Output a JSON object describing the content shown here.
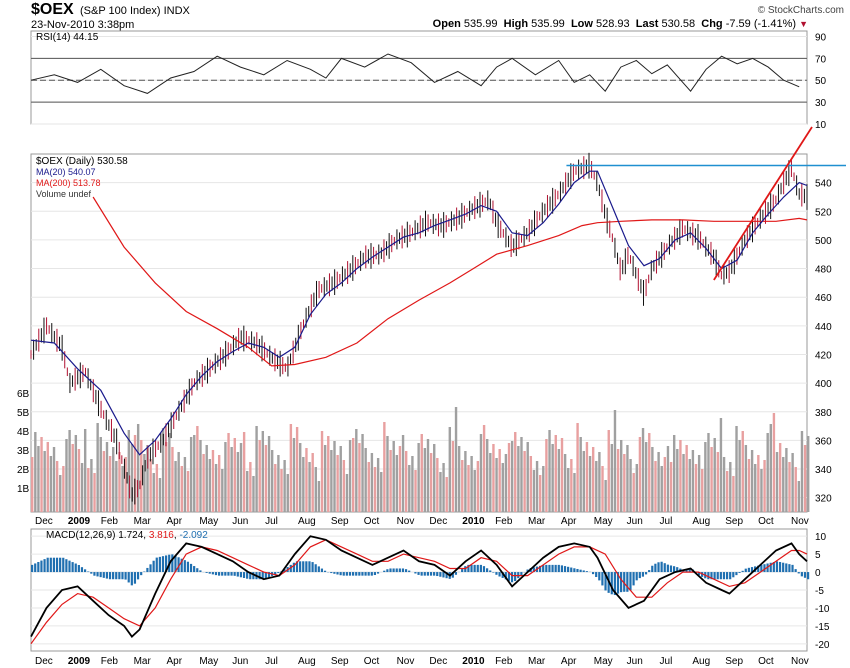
{
  "header": {
    "symbol": "$OEX",
    "description": "(S&P 100 Index) INDX",
    "datetime": "23-Nov-2010 3:38pm",
    "credit": "© StockCharts.com",
    "open_label": "Open",
    "open": "535.99",
    "high_label": "High",
    "high": "535.99",
    "low_label": "Low",
    "low": "528.93",
    "last_label": "Last",
    "last": "530.58",
    "chg_label": "Chg",
    "chg": "-7.59 (-1.41%)",
    "chg_marker": "▼"
  },
  "colors": {
    "price_bar": "#111111",
    "down_bar": "#b01030",
    "ma20": "#1a1a8c",
    "ma200": "#e01818",
    "volume_up": "#a0a0a0",
    "volume_down": "#e8a0a0",
    "trendline": "#e01818",
    "resistance": "#1f8fd0",
    "macd_line": "#000000",
    "signal_line": "#e01818",
    "histogram": "#1f6fb0",
    "grid": "#e6e6e6"
  },
  "chart_data": [
    {
      "type": "line",
      "name": "rsi",
      "title": "RSI(14) 44.15",
      "yticks": [
        90,
        70,
        50,
        30,
        10
      ],
      "ylim": [
        10,
        95
      ],
      "reference_lines": [
        70,
        50,
        30
      ],
      "points": [
        [
          0,
          50
        ],
        [
          3,
          55
        ],
        [
          6,
          48
        ],
        [
          9,
          60
        ],
        [
          12,
          45
        ],
        [
          15,
          38
        ],
        [
          18,
          52
        ],
        [
          21,
          58
        ],
        [
          24,
          72
        ],
        [
          27,
          62
        ],
        [
          30,
          55
        ],
        [
          33,
          68
        ],
        [
          36,
          60
        ],
        [
          38,
          52
        ],
        [
          40,
          70
        ],
        [
          43,
          62
        ],
        [
          46,
          74
        ],
        [
          49,
          66
        ],
        [
          52,
          48
        ],
        [
          55,
          58
        ],
        [
          58,
          45
        ],
        [
          60,
          62
        ],
        [
          62,
          70
        ],
        [
          65,
          55
        ],
        [
          68,
          68
        ],
        [
          70,
          48
        ],
        [
          72,
          55
        ],
        [
          74,
          40
        ],
        [
          76,
          62
        ],
        [
          78,
          68
        ],
        [
          80,
          56
        ],
        [
          82,
          64
        ],
        [
          84,
          48
        ],
        [
          85,
          40
        ],
        [
          87,
          60
        ],
        [
          89,
          72
        ],
        [
          91,
          65
        ],
        [
          93,
          70
        ],
        [
          95,
          62
        ],
        [
          97,
          50
        ],
        [
          99,
          44
        ]
      ]
    },
    {
      "type": "line",
      "name": "price",
      "title": "$OEX (Daily) 530.58",
      "legend": [
        "$OEX (Daily) 530.58",
        "MA(20) 540.07",
        "MA(200) 513.78",
        "Volume undef"
      ],
      "yticks": [
        540,
        520,
        500,
        480,
        460,
        440,
        420,
        400,
        380,
        360,
        340,
        320
      ],
      "ylim": [
        310,
        560
      ],
      "volume_ticks": [
        "6B",
        "5B",
        "4B",
        "3B",
        "2B",
        "1B"
      ],
      "xticks": [
        "Dec",
        "2009",
        "Feb",
        "Mar",
        "Apr",
        "May",
        "Jun",
        "Jul",
        "Aug",
        "Sep",
        "Oct",
        "Nov",
        "Dec",
        "2010",
        "Feb",
        "Mar",
        "Apr",
        "May",
        "Jun",
        "Jul",
        "Aug",
        "Sep",
        "Oct",
        "Nov"
      ],
      "price": [
        [
          0,
          420
        ],
        [
          2,
          440
        ],
        [
          4,
          425
        ],
        [
          5,
          400
        ],
        [
          7,
          408
        ],
        [
          9,
          382
        ],
        [
          11,
          360
        ],
        [
          13,
          322
        ],
        [
          14,
          328
        ],
        [
          15,
          348
        ],
        [
          17,
          360
        ],
        [
          19,
          380
        ],
        [
          21,
          400
        ],
        [
          23,
          410
        ],
        [
          25,
          420
        ],
        [
          27,
          432
        ],
        [
          29,
          428
        ],
        [
          31,
          418
        ],
        [
          33,
          410
        ],
        [
          35,
          440
        ],
        [
          37,
          465
        ],
        [
          39,
          470
        ],
        [
          41,
          478
        ],
        [
          43,
          488
        ],
        [
          45,
          490
        ],
        [
          47,
          500
        ],
        [
          49,
          505
        ],
        [
          51,
          512
        ],
        [
          53,
          510
        ],
        [
          55,
          515
        ],
        [
          57,
          522
        ],
        [
          59,
          528
        ],
        [
          60,
          512
        ],
        [
          62,
          495
        ],
        [
          64,
          505
        ],
        [
          66,
          520
        ],
        [
          68,
          532
        ],
        [
          70,
          548
        ],
        [
          72,
          552
        ],
        [
          73,
          540
        ],
        [
          74,
          518
        ],
        [
          75,
          500
        ],
        [
          76,
          478
        ],
        [
          77,
          490
        ],
        [
          79,
          462
        ],
        [
          80,
          480
        ],
        [
          82,
          495
        ],
        [
          84,
          508
        ],
        [
          86,
          502
        ],
        [
          88,
          488
        ],
        [
          89,
          475
        ],
        [
          90,
          478
        ],
        [
          92,
          500
        ],
        [
          94,
          515
        ],
        [
          96,
          528
        ],
        [
          97,
          540
        ],
        [
          98,
          550
        ],
        [
          99,
          532
        ],
        [
          100,
          530
        ]
      ],
      "ma20": [
        [
          0,
          430
        ],
        [
          3,
          428
        ],
        [
          6,
          410
        ],
        [
          9,
          395
        ],
        [
          12,
          365
        ],
        [
          14,
          350
        ],
        [
          16,
          360
        ],
        [
          18,
          375
        ],
        [
          20,
          392
        ],
        [
          22,
          405
        ],
        [
          24,
          415
        ],
        [
          26,
          422
        ],
        [
          28,
          428
        ],
        [
          30,
          425
        ],
        [
          32,
          418
        ],
        [
          34,
          425
        ],
        [
          36,
          448
        ],
        [
          38,
          462
        ],
        [
          40,
          470
        ],
        [
          42,
          480
        ],
        [
          44,
          488
        ],
        [
          46,
          495
        ],
        [
          48,
          502
        ],
        [
          50,
          505
        ],
        [
          52,
          510
        ],
        [
          54,
          514
        ],
        [
          56,
          518
        ],
        [
          58,
          524
        ],
        [
          60,
          520
        ],
        [
          62,
          505
        ],
        [
          64,
          503
        ],
        [
          66,
          512
        ],
        [
          68,
          525
        ],
        [
          70,
          540
        ],
        [
          72,
          548
        ],
        [
          73,
          548
        ],
        [
          75,
          522
        ],
        [
          77,
          496
        ],
        [
          79,
          482
        ],
        [
          81,
          487
        ],
        [
          83,
          500
        ],
        [
          85,
          505
        ],
        [
          87,
          494
        ],
        [
          89,
          480
        ],
        [
          91,
          486
        ],
        [
          93,
          505
        ],
        [
          95,
          518
        ],
        [
          97,
          530
        ],
        [
          99,
          540
        ],
        [
          100,
          538
        ]
      ],
      "ma200": [
        [
          8,
          530
        ],
        [
          12,
          495
        ],
        [
          16,
          470
        ],
        [
          20,
          450
        ],
        [
          24,
          438
        ],
        [
          28,
          425
        ],
        [
          31,
          412
        ],
        [
          34,
          413
        ],
        [
          38,
          418
        ],
        [
          42,
          428
        ],
        [
          46,
          445
        ],
        [
          50,
          458
        ],
        [
          54,
          470
        ],
        [
          57,
          480
        ],
        [
          60,
          490
        ],
        [
          64,
          496
        ],
        [
          68,
          503
        ],
        [
          71,
          510
        ],
        [
          73,
          512
        ],
        [
          76,
          513
        ],
        [
          80,
          514
        ],
        [
          84,
          514
        ],
        [
          88,
          513
        ],
        [
          92,
          513
        ],
        [
          96,
          513
        ],
        [
          99,
          515
        ],
        [
          100,
          514
        ]
      ],
      "volume_avg_label": "",
      "annotations": [
        "rising trendline",
        "resistance line"
      ]
    },
    {
      "type": "line",
      "name": "macd",
      "title": "MACD(12,26,9)",
      "macd_value": "1.724",
      "signal_value": "3.816",
      "histogram_value": "-2.092",
      "yticks": [
        10,
        5,
        0,
        -5,
        -10,
        -15,
        -20
      ],
      "ylim": [
        -22,
        12
      ],
      "xticks": [
        "Dec",
        "2009",
        "Feb",
        "Mar",
        "Apr",
        "May",
        "Jun",
        "Jul",
        "Aug",
        "Sep",
        "Oct",
        "Nov",
        "Dec",
        "2010",
        "Feb",
        "Mar",
        "Apr",
        "May",
        "Jun",
        "Jul",
        "Aug",
        "Sep",
        "Oct",
        "Nov"
      ],
      "macd": [
        [
          0,
          -18
        ],
        [
          2,
          -10
        ],
        [
          4,
          -5
        ],
        [
          6,
          -4
        ],
        [
          8,
          -8
        ],
        [
          10,
          -12
        ],
        [
          12,
          -15
        ],
        [
          13,
          -18
        ],
        [
          14,
          -16
        ],
        [
          16,
          -6
        ],
        [
          18,
          3
        ],
        [
          20,
          8
        ],
        [
          22,
          7
        ],
        [
          24,
          5
        ],
        [
          26,
          3
        ],
        [
          28,
          0
        ],
        [
          30,
          -2
        ],
        [
          32,
          -1
        ],
        [
          34,
          5
        ],
        [
          36,
          10
        ],
        [
          38,
          9
        ],
        [
          40,
          6
        ],
        [
          42,
          4
        ],
        [
          44,
          2
        ],
        [
          46,
          4
        ],
        [
          48,
          6
        ],
        [
          50,
          3
        ],
        [
          52,
          2
        ],
        [
          54,
          -1
        ],
        [
          56,
          3
        ],
        [
          58,
          6
        ],
        [
          60,
          2
        ],
        [
          62,
          -4
        ],
        [
          64,
          0
        ],
        [
          66,
          4
        ],
        [
          68,
          7
        ],
        [
          70,
          8
        ],
        [
          72,
          7
        ],
        [
          73,
          4
        ],
        [
          75,
          -5
        ],
        [
          77,
          -10
        ],
        [
          79,
          -8
        ],
        [
          81,
          -2
        ],
        [
          83,
          0
        ],
        [
          85,
          1
        ],
        [
          87,
          -3
        ],
        [
          89,
          -5
        ],
        [
          90,
          -6
        ],
        [
          92,
          -2
        ],
        [
          94,
          2
        ],
        [
          96,
          6
        ],
        [
          98,
          8
        ],
        [
          99,
          5
        ],
        [
          100,
          3
        ]
      ],
      "signal": [
        [
          0,
          -20
        ],
        [
          2,
          -14
        ],
        [
          4,
          -9
        ],
        [
          6,
          -6
        ],
        [
          8,
          -7
        ],
        [
          10,
          -10
        ],
        [
          12,
          -13
        ],
        [
          14,
          -15
        ],
        [
          16,
          -10
        ],
        [
          18,
          -2
        ],
        [
          20,
          5
        ],
        [
          22,
          7
        ],
        [
          24,
          6
        ],
        [
          26,
          4
        ],
        [
          28,
          2
        ],
        [
          30,
          0
        ],
        [
          32,
          -1
        ],
        [
          34,
          2
        ],
        [
          36,
          7
        ],
        [
          38,
          9
        ],
        [
          40,
          7
        ],
        [
          42,
          5
        ],
        [
          44,
          3
        ],
        [
          46,
          3
        ],
        [
          48,
          5
        ],
        [
          50,
          4
        ],
        [
          52,
          3
        ],
        [
          54,
          1
        ],
        [
          56,
          1
        ],
        [
          58,
          4
        ],
        [
          60,
          3
        ],
        [
          62,
          -1
        ],
        [
          64,
          -1
        ],
        [
          66,
          2
        ],
        [
          68,
          5
        ],
        [
          70,
          7
        ],
        [
          72,
          7
        ],
        [
          74,
          5
        ],
        [
          76,
          -2
        ],
        [
          78,
          -7
        ],
        [
          80,
          -7
        ],
        [
          82,
          -3
        ],
        [
          84,
          0
        ],
        [
          86,
          0
        ],
        [
          88,
          -2
        ],
        [
          90,
          -4
        ],
        [
          92,
          -3
        ],
        [
          94,
          0
        ],
        [
          96,
          3
        ],
        [
          98,
          6
        ],
        [
          99,
          6
        ],
        [
          100,
          5
        ]
      ]
    }
  ]
}
